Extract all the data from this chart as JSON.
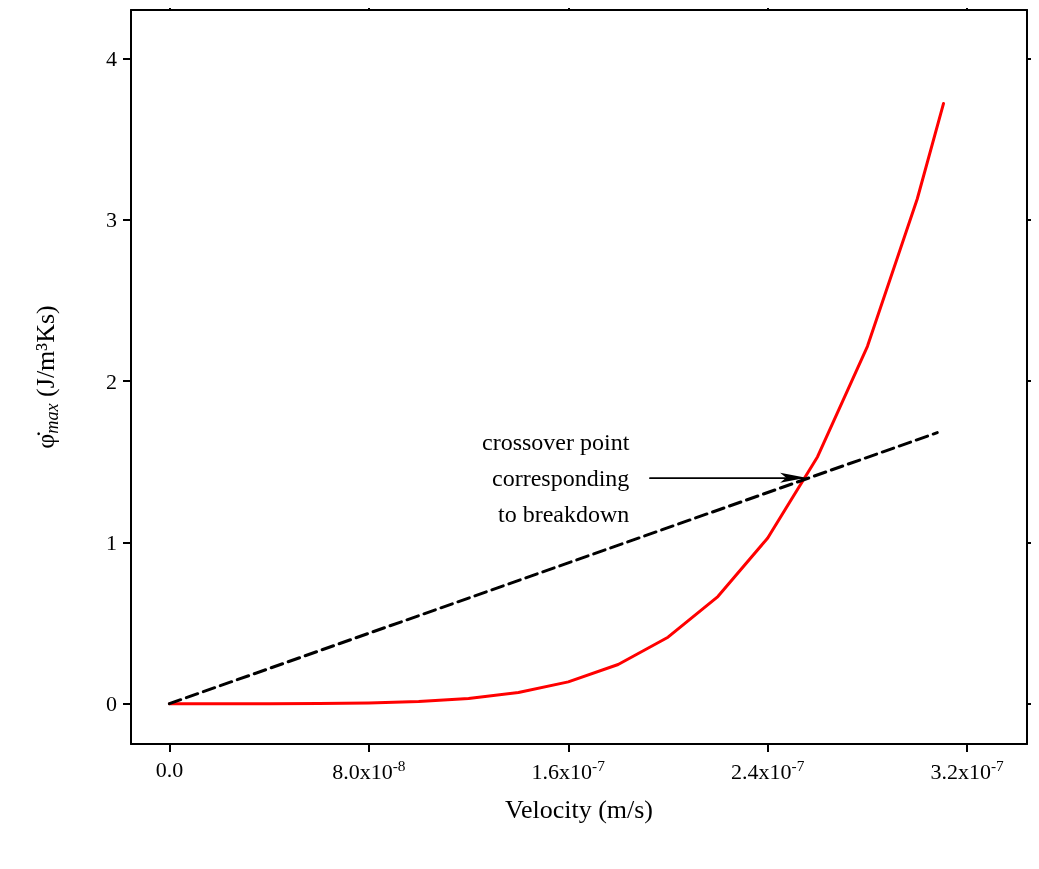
{
  "chart_data": {
    "type": "line",
    "xlabel": "Velocity (m/s)",
    "ylabel": "φ̇$_{max}$ (J/m³Ks)",
    "xlim": [
      -1.54e-08,
      3.44e-07
    ],
    "ylim": [
      -0.25,
      4.3
    ],
    "xticks": [
      {
        "value": 0,
        "label": "0.0"
      },
      {
        "value": 8e-08,
        "label": "8.0x10$^{-8}$"
      },
      {
        "value": 1.6e-07,
        "label": "1.6x10$^{-7}$"
      },
      {
        "value": 2.4e-07,
        "label": "2.4x10$^{-7}$"
      },
      {
        "value": 3.2e-07,
        "label": "3.2x10$^{-7}$"
      }
    ],
    "yticks": [
      0,
      1,
      2,
      3,
      4
    ],
    "grid": false,
    "marker": "none",
    "series": [
      {
        "color": "#ff0000",
        "line_style": "solid",
        "x": [
          0,
          2e-08,
          4e-08,
          6e-08,
          8e-08,
          1e-07,
          1.2e-07,
          1.4e-07,
          1.6e-07,
          1.8e-07,
          2e-07,
          2.2e-07,
          2.4e-07,
          2.6e-07,
          2.8e-07,
          3e-07,
          3.105e-07
        ],
        "values": [
          0,
          0,
          0,
          0.001,
          0.004,
          0.013,
          0.032,
          0.069,
          0.135,
          0.243,
          0.412,
          0.664,
          1.027,
          1.531,
          2.215,
          3.13,
          3.72
        ]
      },
      {
        "color": "#000000",
        "line_style": "dashed",
        "x": [
          0,
          3.08e-07
        ],
        "values": [
          0,
          1.68
        ]
      }
    ],
    "annotations": [
      {
        "text": "crossover point\ncorresponding\nto breakdown",
        "x": 2.554e-07,
        "y": 1.4
      }
    ]
  }
}
